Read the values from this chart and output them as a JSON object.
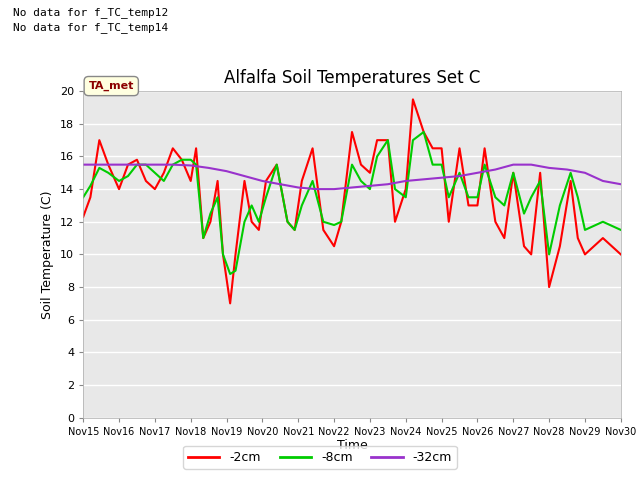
{
  "title": "Alfalfa Soil Temperatures Set C",
  "xlabel": "Time",
  "ylabel": "Soil Temperature (C)",
  "note_line1": "No data for f_TC_temp12",
  "note_line2": "No data for f_TC_temp14",
  "ta_met_label": "TA_met",
  "ylim": [
    0,
    20
  ],
  "yticks": [
    0,
    2,
    4,
    6,
    8,
    10,
    12,
    14,
    16,
    18,
    20
  ],
  "x_labels": [
    "Nov 15",
    "Nov 16",
    "Nov 17",
    "Nov 18",
    "Nov 19",
    "Nov 20",
    "Nov 21",
    "Nov 22",
    "Nov 23",
    "Nov 24",
    "Nov 25",
    "Nov 26",
    "Nov 27",
    "Nov 28",
    "Nov 29",
    "Nov 30"
  ],
  "x_values": [
    0,
    1,
    2,
    3,
    4,
    5,
    6,
    7,
    8,
    9,
    10,
    11,
    12,
    13,
    14,
    15
  ],
  "series_2cm": {
    "color": "#ff0000",
    "label": "-2cm",
    "x": [
      0.0,
      0.2,
      0.45,
      0.7,
      1.0,
      1.25,
      1.5,
      1.75,
      2.0,
      2.25,
      2.5,
      2.75,
      3.0,
      3.15,
      3.35,
      3.55,
      3.75,
      3.9,
      4.1,
      4.25,
      4.5,
      4.7,
      4.9,
      5.1,
      5.4,
      5.7,
      5.9,
      6.1,
      6.4,
      6.7,
      7.0,
      7.2,
      7.5,
      7.75,
      8.0,
      8.2,
      8.5,
      8.7,
      9.0,
      9.2,
      9.5,
      9.75,
      10.0,
      10.2,
      10.5,
      10.75,
      11.0,
      11.2,
      11.5,
      11.75,
      12.0,
      12.3,
      12.5,
      12.75,
      13.0,
      13.3,
      13.6,
      13.8,
      14.0,
      14.5,
      15.0
    ],
    "y": [
      12.3,
      13.5,
      17.0,
      15.5,
      14.0,
      15.5,
      15.8,
      14.5,
      14.0,
      15.0,
      16.5,
      15.8,
      14.5,
      16.5,
      11.0,
      12.0,
      14.5,
      10.0,
      7.0,
      10.0,
      14.5,
      12.0,
      11.5,
      14.5,
      15.5,
      12.0,
      11.5,
      14.5,
      16.5,
      11.5,
      10.5,
      12.0,
      17.5,
      15.5,
      15.0,
      17.0,
      17.0,
      12.0,
      14.0,
      19.5,
      17.5,
      16.5,
      16.5,
      12.0,
      16.5,
      13.0,
      13.0,
      16.5,
      12.0,
      11.0,
      15.0,
      10.5,
      10.0,
      15.0,
      8.0,
      10.5,
      14.5,
      11.0,
      10.0,
      11.0,
      10.0
    ]
  },
  "series_8cm": {
    "color": "#00cc00",
    "label": "-8cm",
    "x": [
      0.0,
      0.2,
      0.45,
      0.7,
      1.0,
      1.25,
      1.5,
      1.75,
      2.0,
      2.25,
      2.5,
      2.75,
      3.0,
      3.15,
      3.35,
      3.55,
      3.75,
      3.9,
      4.1,
      4.25,
      4.5,
      4.7,
      4.9,
      5.1,
      5.4,
      5.7,
      5.9,
      6.1,
      6.4,
      6.7,
      7.0,
      7.2,
      7.5,
      7.75,
      8.0,
      8.2,
      8.5,
      8.7,
      9.0,
      9.2,
      9.5,
      9.75,
      10.0,
      10.2,
      10.5,
      10.75,
      11.0,
      11.2,
      11.5,
      11.75,
      12.0,
      12.3,
      12.5,
      12.75,
      13.0,
      13.3,
      13.6,
      13.8,
      14.0,
      14.5,
      15.0
    ],
    "y": [
      13.5,
      14.2,
      15.3,
      15.0,
      14.5,
      14.8,
      15.5,
      15.5,
      15.0,
      14.5,
      15.5,
      15.8,
      15.8,
      15.5,
      11.0,
      12.5,
      13.5,
      10.0,
      8.8,
      9.0,
      12.0,
      13.0,
      12.0,
      13.5,
      15.5,
      12.0,
      11.5,
      13.0,
      14.5,
      12.0,
      11.8,
      12.0,
      15.5,
      14.5,
      14.0,
      16.0,
      17.0,
      14.0,
      13.5,
      17.0,
      17.5,
      15.5,
      15.5,
      13.5,
      15.0,
      13.5,
      13.5,
      15.5,
      13.5,
      13.0,
      15.0,
      12.5,
      13.5,
      14.5,
      10.0,
      13.0,
      15.0,
      13.5,
      11.5,
      12.0,
      11.5
    ]
  },
  "series_32cm": {
    "color": "#9932cc",
    "label": "-32cm",
    "x": [
      0.0,
      0.5,
      1.0,
      1.5,
      2.0,
      2.5,
      3.0,
      3.5,
      4.0,
      4.5,
      5.0,
      5.5,
      6.0,
      6.5,
      7.0,
      7.5,
      8.0,
      8.5,
      9.0,
      9.5,
      10.0,
      10.5,
      11.0,
      11.5,
      12.0,
      12.5,
      13.0,
      13.5,
      14.0,
      14.5,
      15.0
    ],
    "y": [
      15.5,
      15.5,
      15.5,
      15.5,
      15.5,
      15.5,
      15.45,
      15.3,
      15.1,
      14.8,
      14.5,
      14.3,
      14.1,
      14.0,
      14.0,
      14.1,
      14.2,
      14.3,
      14.5,
      14.6,
      14.7,
      14.8,
      15.0,
      15.2,
      15.5,
      15.5,
      15.3,
      15.2,
      15.0,
      14.5,
      14.3
    ]
  },
  "bg_color": "#e8e8e8",
  "grid_color": "#ffffff",
  "legend_items": [
    {
      "label": "-2cm",
      "color": "#ff0000"
    },
    {
      "label": "-8cm",
      "color": "#00cc00"
    },
    {
      "label": "-32cm",
      "color": "#9932cc"
    }
  ]
}
